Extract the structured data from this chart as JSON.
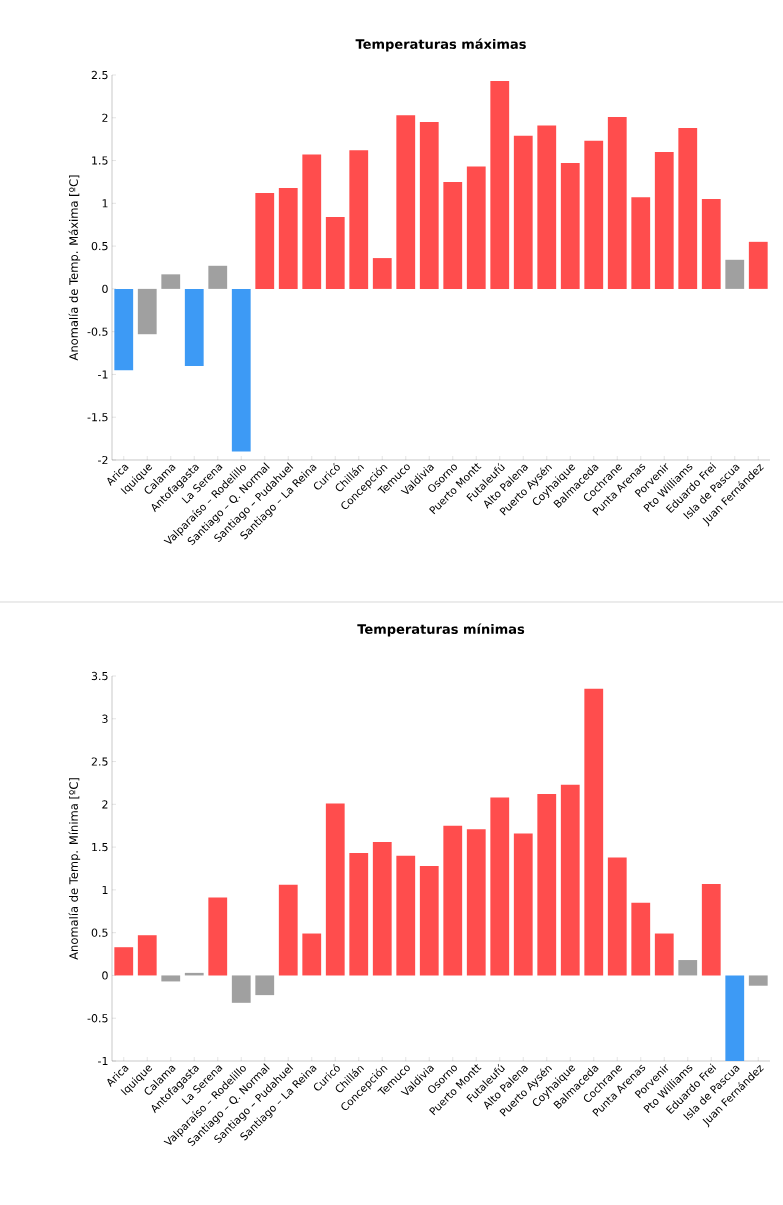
{
  "chart_data": [
    {
      "type": "bar",
      "title": "Temperaturas máximas",
      "ylabel": "Anomalía de Temp. Máxima [ºC]",
      "categories": [
        "Arica",
        "Iquique",
        "Calama",
        "Antofagasta",
        "La Serena",
        "Valparaíso – Rodelillo",
        "Santiago – Q. Normal",
        "Santiago – Pudahuel",
        "Santiago – La Reina",
        "Curicó",
        "Chillán",
        "Concepción",
        "Temuco",
        "Valdivia",
        "Osorno",
        "Puerto Montt",
        "Futaleufú",
        "Alto Palena",
        "Puerto Aysén",
        "Coyhaique",
        "Balmaceda",
        "Cochrane",
        "Punta Arenas",
        "Porvenir",
        "Pto Williams",
        "Eduardo Frei",
        "Isla de Pascua",
        "Juan Fernández"
      ],
      "values": [
        -0.95,
        -0.53,
        0.17,
        -0.9,
        0.27,
        -1.9,
        1.12,
        1.18,
        1.57,
        0.84,
        1.62,
        0.36,
        2.03,
        1.95,
        1.25,
        1.43,
        2.43,
        1.79,
        1.91,
        1.47,
        1.73,
        2.01,
        1.07,
        1.6,
        1.88,
        1.05,
        0.34,
        0.55
      ],
      "colors": [
        "#3d9af5",
        "#a0a0a0",
        "#a0a0a0",
        "#3d9af5",
        "#a0a0a0",
        "#3d9af5",
        "#ff4d4d",
        "#ff4d4d",
        "#ff4d4d",
        "#ff4d4d",
        "#ff4d4d",
        "#ff4d4d",
        "#ff4d4d",
        "#ff4d4d",
        "#ff4d4d",
        "#ff4d4d",
        "#ff4d4d",
        "#ff4d4d",
        "#ff4d4d",
        "#ff4d4d",
        "#ff4d4d",
        "#ff4d4d",
        "#ff4d4d",
        "#ff4d4d",
        "#ff4d4d",
        "#ff4d4d",
        "#a0a0a0",
        "#ff4d4d"
      ],
      "ylim": [
        -2,
        2.5
      ],
      "yticks": [
        -2,
        -1.5,
        -1,
        -0.5,
        0,
        0.5,
        1,
        1.5,
        2,
        2.5
      ]
    },
    {
      "type": "bar",
      "title": "Temperaturas mínimas",
      "ylabel": "Anomalía de Temp. Mínima [ºC]",
      "categories": [
        "Arica",
        "Iquique",
        "Calama",
        "Antofagasta",
        "La Serena",
        "Valparaíso – Rodelillo",
        "Santiago – Q. Normal",
        "Santiago – Pudahuel",
        "Santiago – La Reina",
        "Curicó",
        "Chillán",
        "Concepción",
        "Temuco",
        "Valdivia",
        "Osorno",
        "Puerto Montt",
        "Futaleufú",
        "Alto Palena",
        "Puerto Aysén",
        "Coyhaique",
        "Balmaceda",
        "Cochrane",
        "Punta Arenas",
        "Porvenir",
        "Pto Williams",
        "Eduardo Frei",
        "Isla de Pascua",
        "Juan Fernández"
      ],
      "values": [
        0.33,
        0.47,
        -0.07,
        0.03,
        0.91,
        -0.32,
        -0.23,
        1.06,
        0.49,
        2.01,
        1.43,
        1.56,
        1.4,
        1.28,
        1.75,
        1.71,
        2.08,
        1.66,
        2.12,
        2.23,
        3.35,
        1.38,
        0.85,
        0.49,
        0.18,
        1.07,
        -1.0,
        -0.12
      ],
      "colors": [
        "#ff4d4d",
        "#ff4d4d",
        "#a0a0a0",
        "#a0a0a0",
        "#ff4d4d",
        "#a0a0a0",
        "#a0a0a0",
        "#ff4d4d",
        "#ff4d4d",
        "#ff4d4d",
        "#ff4d4d",
        "#ff4d4d",
        "#ff4d4d",
        "#ff4d4d",
        "#ff4d4d",
        "#ff4d4d",
        "#ff4d4d",
        "#ff4d4d",
        "#ff4d4d",
        "#ff4d4d",
        "#ff4d4d",
        "#ff4d4d",
        "#ff4d4d",
        "#ff4d4d",
        "#a0a0a0",
        "#ff4d4d",
        "#3d9af5",
        "#a0a0a0"
      ],
      "ylim": [
        -1,
        3.5
      ],
      "yticks": [
        -1,
        -0.5,
        0,
        0.5,
        1,
        1.5,
        2,
        2.5,
        3,
        3.5
      ]
    }
  ]
}
